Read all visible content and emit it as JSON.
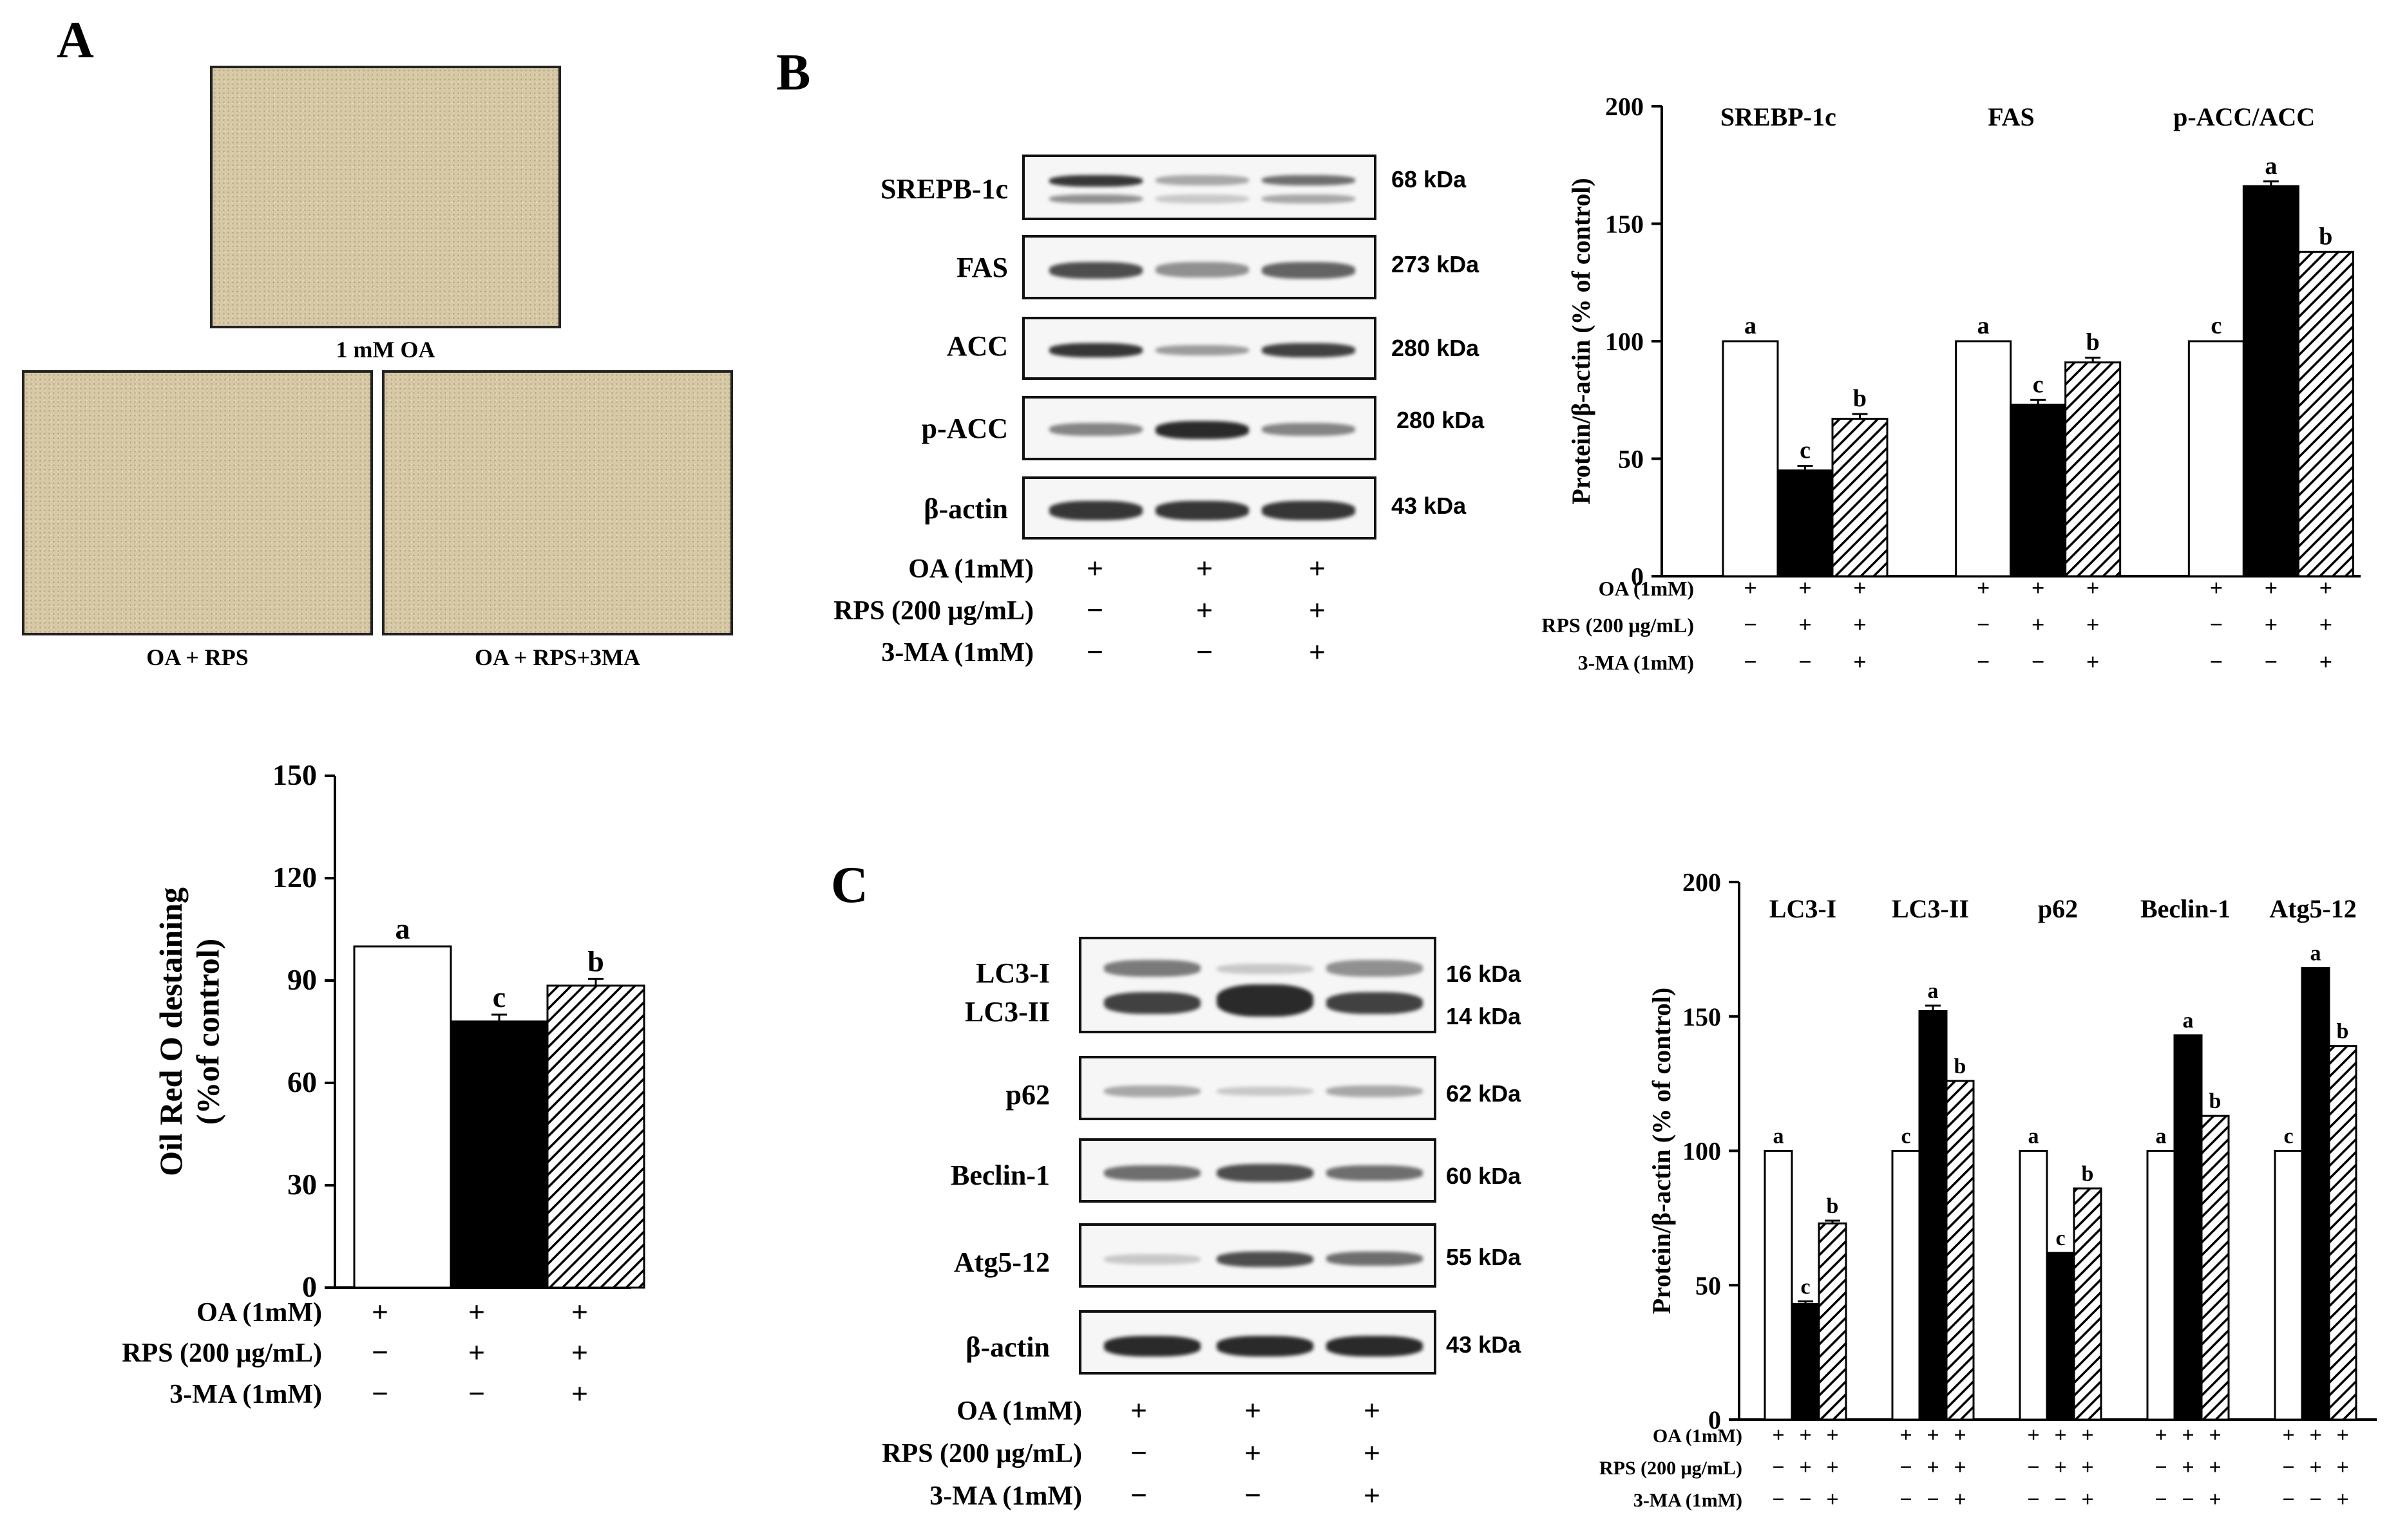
{
  "panels": {
    "a": "A",
    "b": "B",
    "c": "C"
  },
  "panel_a": {
    "micro_captions": [
      "1 mM OA",
      "OA + RPS",
      "OA + RPS+3MA"
    ],
    "micro_color": "#d7c9a6",
    "conditions": {
      "labels": [
        "OA (1mM)",
        "RPS (200 μg/mL)",
        "3-MA (1mM)"
      ],
      "rows": [
        [
          "+",
          "+",
          "+"
        ],
        [
          "−",
          "+",
          "+"
        ],
        [
          "−",
          "−",
          "+"
        ]
      ]
    }
  },
  "panel_b": {
    "blot_labels": [
      "SREPB-1c",
      "FAS",
      "ACC",
      "p-ACC",
      "β-actin"
    ],
    "kda": [
      "68 kDa",
      "273 kDa",
      "280 kDa",
      "280 kDa",
      "43 kDa"
    ],
    "conditions": {
      "labels": [
        "OA (1mM)",
        "RPS (200 μg/mL)",
        "3-MA (1mM)"
      ],
      "rows": [
        [
          "+",
          "+",
          "+"
        ],
        [
          "−",
          "+",
          "+"
        ],
        [
          "−",
          "−",
          "+"
        ]
      ]
    },
    "chart_cond_labels": [
      "OA (1mM)",
      "RPS (200 μg/mL)",
      "3-MA (1mM)"
    ]
  },
  "panel_c": {
    "blot_labels": [
      "LC3-I",
      "LC3-II",
      "p62",
      "Beclin-1",
      "Atg5-12",
      "β-actin"
    ],
    "kda": [
      "16 kDa",
      "14 kDa",
      "62 kDa",
      "60 kDa",
      "55 kDa",
      "43 kDa"
    ],
    "conditions": {
      "labels": [
        "OA (1mM)",
        "RPS (200 μg/mL)",
        "3-MA (1mM)"
      ],
      "rows": [
        [
          "+",
          "+",
          "+"
        ],
        [
          "−",
          "+",
          "+"
        ],
        [
          "−",
          "−",
          "+"
        ]
      ]
    },
    "chart_cond_labels": [
      "OA (1mM)",
      "RPS (200 μg/mL)",
      "3-MA (1mM)"
    ]
  },
  "chart_data": [
    {
      "type": "bar",
      "ylabel": "Oil Red O destaining\n(%of control)",
      "ylim": [
        0,
        150
      ],
      "yticks": [
        0,
        30,
        60,
        90,
        120,
        150
      ],
      "groups": [
        {
          "name": "",
          "values": [
            100,
            78,
            88.5
          ],
          "errors": [
            0,
            2,
            2
          ],
          "letters": [
            "a",
            "c",
            "b"
          ]
        }
      ],
      "fills": [
        "white",
        "black",
        "hatch"
      ]
    },
    {
      "type": "bar",
      "ylabel": "Protein/β-actin (% of control)",
      "ylim": [
        0,
        200
      ],
      "yticks": [
        0,
        50,
        100,
        150,
        200
      ],
      "groups": [
        {
          "name": "SREBP-1c",
          "values": [
            100,
            45,
            67
          ],
          "errors": [
            0,
            2,
            2
          ],
          "letters": [
            "a",
            "c",
            "b"
          ]
        },
        {
          "name": "FAS",
          "values": [
            100,
            73,
            91
          ],
          "errors": [
            0,
            2,
            2
          ],
          "letters": [
            "a",
            "c",
            "b"
          ]
        },
        {
          "name": "p-ACC/ACC",
          "values": [
            100,
            166,
            138
          ],
          "errors": [
            0,
            2,
            0
          ],
          "letters": [
            "c",
            "a",
            "b"
          ]
        }
      ],
      "fills": [
        "white",
        "black",
        "hatch"
      ]
    },
    {
      "type": "bar",
      "ylabel": "Protein/β-actin (% of control)",
      "ylim": [
        0,
        200
      ],
      "yticks": [
        0,
        50,
        100,
        150,
        200
      ],
      "groups": [
        {
          "name": "LC3-I",
          "values": [
            100,
            43,
            73
          ],
          "errors": [
            0,
            1,
            1
          ],
          "letters": [
            "a",
            "c",
            "b"
          ]
        },
        {
          "name": "LC3-II",
          "values": [
            100,
            152,
            126
          ],
          "errors": [
            0,
            2,
            0
          ],
          "letters": [
            "c",
            "a",
            "b"
          ]
        },
        {
          "name": "p62",
          "values": [
            100,
            62,
            86
          ],
          "errors": [
            0,
            0,
            0
          ],
          "letters": [
            "a",
            "c",
            "b"
          ]
        },
        {
          "name": "Beclin-1",
          "values": [
            100,
            143,
            113
          ],
          "errors": [
            0,
            0,
            0
          ],
          "letters": [
            "a",
            "a",
            "b"
          ]
        },
        {
          "name": "Atg5-12",
          "values": [
            100,
            168,
            139
          ],
          "errors": [
            0,
            0,
            0
          ],
          "letters": [
            "c",
            "a",
            "b"
          ]
        }
      ],
      "fills": [
        "white",
        "black",
        "hatch"
      ]
    }
  ]
}
